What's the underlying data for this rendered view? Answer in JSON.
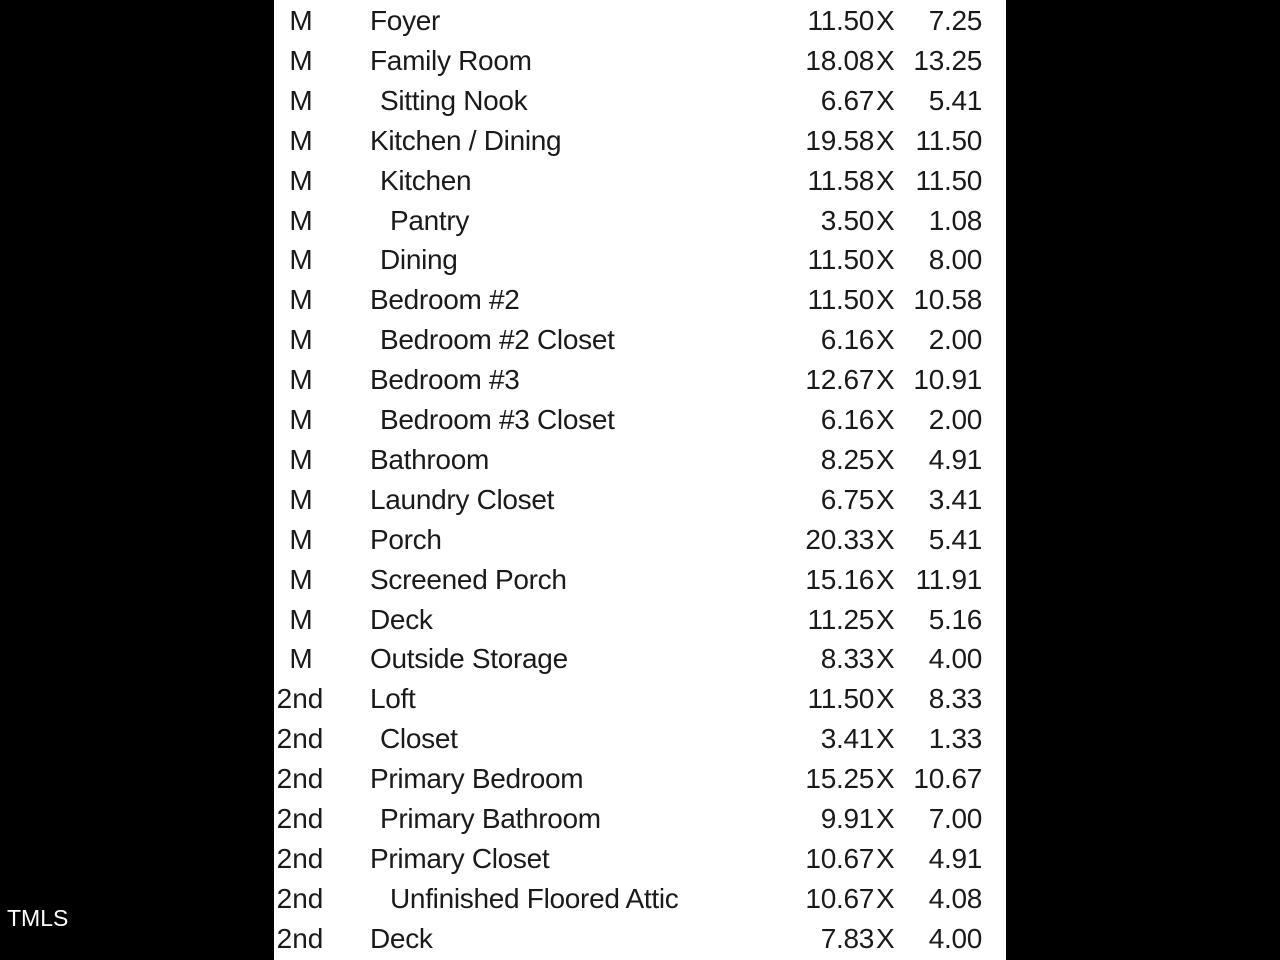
{
  "watermark": "TMLS",
  "separator": "X",
  "rooms": [
    {
      "level": "M",
      "name": "Foyer",
      "indent": 0,
      "length": "11.50",
      "width": "7.25"
    },
    {
      "level": "M",
      "name": "Family Room",
      "indent": 0,
      "length": "18.08",
      "width": "13.25"
    },
    {
      "level": "M",
      "name": "Sitting Nook",
      "indent": 1,
      "length": "6.67",
      "width": "5.41"
    },
    {
      "level": "M",
      "name": "Kitchen / Dining",
      "indent": 0,
      "length": "19.58",
      "width": "11.50"
    },
    {
      "level": "M",
      "name": "Kitchen",
      "indent": 1,
      "length": "11.58",
      "width": "11.50"
    },
    {
      "level": "M",
      "name": "Pantry",
      "indent": 2,
      "length": "3.50",
      "width": "1.08"
    },
    {
      "level": "M",
      "name": "Dining",
      "indent": 1,
      "length": "11.50",
      "width": "8.00"
    },
    {
      "level": "M",
      "name": "Bedroom #2",
      "indent": 0,
      "length": "11.50",
      "width": "10.58"
    },
    {
      "level": "M",
      "name": "Bedroom #2 Closet",
      "indent": 1,
      "length": "6.16",
      "width": "2.00"
    },
    {
      "level": "M",
      "name": "Bedroom #3",
      "indent": 0,
      "length": "12.67",
      "width": "10.91"
    },
    {
      "level": "M",
      "name": "Bedroom #3 Closet",
      "indent": 1,
      "length": "6.16",
      "width": "2.00"
    },
    {
      "level": "M",
      "name": "Bathroom",
      "indent": 0,
      "length": "8.25",
      "width": "4.91"
    },
    {
      "level": "M",
      "name": "Laundry Closet",
      "indent": 0,
      "length": "6.75",
      "width": "3.41"
    },
    {
      "level": "M",
      "name": "Porch",
      "indent": 0,
      "length": "20.33",
      "width": "5.41"
    },
    {
      "level": "M",
      "name": "Screened Porch",
      "indent": 0,
      "length": "15.16",
      "width": "11.91"
    },
    {
      "level": "M",
      "name": "Deck",
      "indent": 0,
      "length": "11.25",
      "width": "5.16"
    },
    {
      "level": "M",
      "name": "Outside Storage",
      "indent": 0,
      "length": "8.33",
      "width": "4.00"
    },
    {
      "level": "2nd",
      "name": "Loft",
      "indent": 0,
      "length": "11.50",
      "width": "8.33"
    },
    {
      "level": "2nd",
      "name": "Closet",
      "indent": 1,
      "length": "3.41",
      "width": "1.33"
    },
    {
      "level": "2nd",
      "name": "Primary Bedroom",
      "indent": 0,
      "length": "15.25",
      "width": "10.67"
    },
    {
      "level": "2nd",
      "name": "Primary Bathroom",
      "indent": 1,
      "length": "9.91",
      "width": "7.00"
    },
    {
      "level": "2nd",
      "name": "Primary Closet",
      "indent": 0,
      "length": "10.67",
      "width": "4.91"
    },
    {
      "level": "2nd",
      "name": "Unfinished Floored Attic",
      "indent": 2,
      "length": "10.67",
      "width": "4.08"
    },
    {
      "level": "2nd",
      "name": "Deck",
      "indent": 0,
      "length": "7.83",
      "width": "4.00"
    }
  ]
}
